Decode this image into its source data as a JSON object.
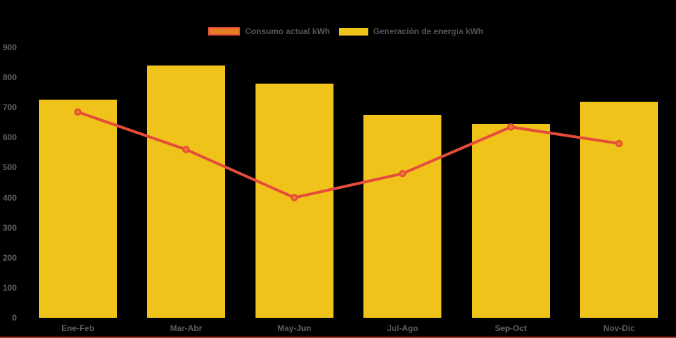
{
  "chart_data": {
    "type": "bar",
    "subtype": "combo-bar-line",
    "title": "",
    "categories": [
      "Ene-Feb",
      "Mar-Abr",
      "May-Jun",
      "Jul-Ago",
      "Sep-Oct",
      "Nov-Dic"
    ],
    "series": [
      {
        "name": "Consumo actual kWh",
        "type": "line",
        "color": "#e64c3c",
        "marker_fill": "#e67e22",
        "values": [
          685,
          560,
          400,
          480,
          635,
          580
        ]
      },
      {
        "name": "Generación de energía kWh",
        "type": "bar",
        "color": "#efc319",
        "values": [
          725,
          840,
          780,
          675,
          645,
          720
        ]
      }
    ],
    "ylim": [
      0,
      900
    ],
    "yticks": [
      0,
      100,
      200,
      300,
      400,
      500,
      600,
      700,
      800,
      900
    ],
    "grid": false,
    "legend_position": "top",
    "background": "#000000",
    "axis_label_color": "#5f5f5f"
  },
  "footer": {
    "accent_color": "#a93226"
  }
}
